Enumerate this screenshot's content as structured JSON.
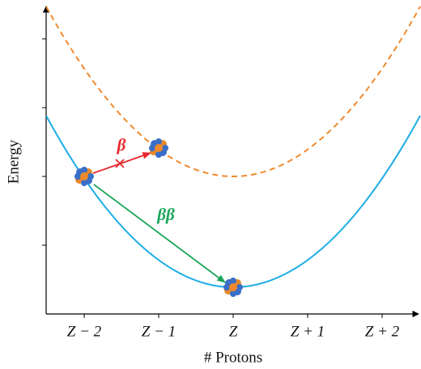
{
  "axes": {
    "y_label": "Energy",
    "x_label": "# Protons",
    "x_ticks": [
      "Z − 2",
      "Z − 1",
      "Z",
      "Z + 1",
      "Z + 2"
    ]
  },
  "arrows": {
    "single_beta": "β",
    "double_beta": "ββ"
  }
}
